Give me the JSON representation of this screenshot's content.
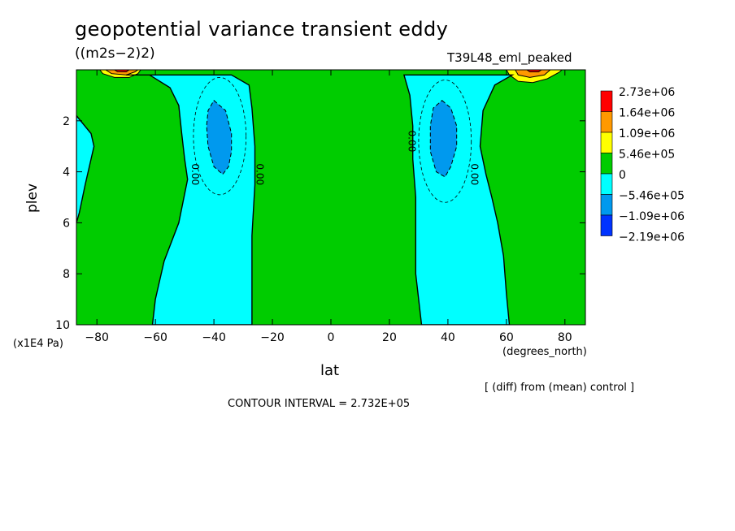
{
  "chart_data": {
    "type": "contour",
    "title": "geopotential variance transient eddy",
    "units": "((m2s−2)2)",
    "run_label": "T39L48_eml_peaked",
    "xlabel": "lat",
    "x_units": "(degrees_north)",
    "ylabel": "plev",
    "y_units": "(x1E4 Pa)",
    "xlim": [
      -87,
      87
    ],
    "ylim": [
      10,
      0
    ],
    "x_ticks": [
      -80,
      -60,
      -40,
      -20,
      0,
      20,
      40,
      60,
      80
    ],
    "y_ticks": [
      2,
      4,
      6,
      8,
      10
    ],
    "diff_note": "[ (diff) from (mean) control ]",
    "contour_interval": "CONTOUR INTERVAL = 2.732E+05",
    "contour_labels": [
      "0.00",
      "0.00",
      "0.00",
      "0.00"
    ],
    "legend": [
      {
        "label": "2.73e+06",
        "color": "#ff0000"
      },
      {
        "label": "1.64e+06",
        "color": "#ff9900"
      },
      {
        "label": "1.09e+06",
        "color": "#ffff00"
      },
      {
        "label": "5.46e+05",
        "color": "#00cc00"
      },
      {
        "label": "0",
        "color": "#00ffff"
      },
      {
        "label": "−5.46e+05",
        "color": "#0099ee"
      },
      {
        "label": "−1.09e+06",
        "color": "#0033ff"
      },
      {
        "label": "−2.19e+06",
        "color": ""
      }
    ],
    "regions": [
      {
        "name": "nh-negative-band",
        "level": "negative",
        "color": "#00ffff",
        "poly": [
          [
            -70,
            0.2
          ],
          [
            -62,
            0.2
          ],
          [
            -55,
            0.7
          ],
          [
            -52,
            1.4
          ],
          [
            -51,
            2.5
          ],
          [
            -50,
            3.5
          ],
          [
            -49,
            4.3
          ],
          [
            -52,
            6.0
          ],
          [
            -57,
            7.5
          ],
          [
            -60,
            9.0
          ],
          [
            -61,
            10
          ],
          [
            -27,
            10
          ],
          [
            -27,
            8.5
          ],
          [
            -27,
            6.5
          ],
          [
            -26,
            4.5
          ],
          [
            -26,
            3.0
          ],
          [
            -27,
            1.5
          ],
          [
            -28,
            0.6
          ],
          [
            -34,
            0.2
          ]
        ]
      },
      {
        "name": "sh-negative-band",
        "level": "negative",
        "color": "#00ffff",
        "poly": [
          [
            25,
            0.2
          ],
          [
            27,
            1.0
          ],
          [
            28,
            2.2
          ],
          [
            28,
            3.5
          ],
          [
            29,
            5.0
          ],
          [
            29,
            6.5
          ],
          [
            29,
            8.0
          ],
          [
            30,
            9.0
          ],
          [
            31,
            10
          ],
          [
            61,
            10
          ],
          [
            60,
            8.8
          ],
          [
            59,
            7.3
          ],
          [
            57,
            6.0
          ],
          [
            55,
            5.0
          ],
          [
            53,
            4.1
          ],
          [
            51,
            3.0
          ],
          [
            52,
            1.6
          ],
          [
            56,
            0.6
          ],
          [
            62,
            0.2
          ]
        ]
      },
      {
        "name": "west-edge-negative",
        "level": "negative",
        "color": "#00ffff",
        "poly": [
          [
            -87,
            1.8
          ],
          [
            -82,
            2.5
          ],
          [
            -81,
            3.0
          ],
          [
            -82,
            3.5
          ],
          [
            -84,
            4.5
          ],
          [
            -86,
            5.6
          ],
          [
            -87,
            6.0
          ]
        ]
      },
      {
        "name": "nh-deep-minimum",
        "level": "strong-negative",
        "color": "#0099ee",
        "poly": [
          [
            -40,
            1.2
          ],
          [
            -36,
            1.6
          ],
          [
            -34,
            2.5
          ],
          [
            -34,
            3.2
          ],
          [
            -35,
            3.8
          ],
          [
            -37,
            4.1
          ],
          [
            -40,
            3.8
          ],
          [
            -42,
            3.0
          ],
          [
            -42.5,
            2.2
          ],
          [
            -42,
            1.6
          ]
        ]
      },
      {
        "name": "sh-deep-minimum",
        "level": "strong-negative",
        "color": "#0099ee",
        "poly": [
          [
            38,
            1.2
          ],
          [
            41,
            1.5
          ],
          [
            43,
            2.2
          ],
          [
            43,
            3.0
          ],
          [
            41,
            3.8
          ],
          [
            39,
            4.2
          ],
          [
            36,
            4.0
          ],
          [
            34,
            3.2
          ],
          [
            34,
            2.2
          ],
          [
            35,
            1.5
          ]
        ]
      },
      {
        "name": "nh-surface-max-outer",
        "level": "positive",
        "color": "#ffff00",
        "poly": [
          [
            -79,
            0
          ],
          [
            -78,
            0.15
          ],
          [
            -74,
            0.3
          ],
          [
            -69,
            0.3
          ],
          [
            -66,
            0.15
          ],
          [
            -65,
            0
          ]
        ]
      },
      {
        "name": "nh-surface-max-mid",
        "level": "positive",
        "color": "#ff9900",
        "poly": [
          [
            -77,
            0
          ],
          [
            -75,
            0.15
          ],
          [
            -70,
            0.2
          ],
          [
            -67,
            0.08
          ],
          [
            -66,
            0
          ]
        ]
      },
      {
        "name": "nh-surface-max-core",
        "level": "positive",
        "color": "#ff0000",
        "poly": [
          [
            -74,
            0
          ],
          [
            -73,
            0.07
          ],
          [
            -70,
            0.08
          ],
          [
            -69,
            0
          ]
        ]
      },
      {
        "name": "sh-surface-max-outer",
        "level": "positive",
        "color": "#ffff00",
        "poly": [
          [
            60,
            0
          ],
          [
            61,
            0.2
          ],
          [
            64,
            0.45
          ],
          [
            69,
            0.5
          ],
          [
            74,
            0.35
          ],
          [
            78,
            0.1
          ],
          [
            79,
            0
          ]
        ]
      },
      {
        "name": "sh-surface-max-mid",
        "level": "positive",
        "color": "#ff9900",
        "poly": [
          [
            63,
            0
          ],
          [
            64,
            0.2
          ],
          [
            68,
            0.3
          ],
          [
            73,
            0.2
          ],
          [
            75,
            0
          ]
        ]
      },
      {
        "name": "sh-surface-max-core",
        "level": "positive",
        "color": "#ff0000",
        "poly": [
          [
            67,
            0
          ],
          [
            68,
            0.08
          ],
          [
            71,
            0.08
          ],
          [
            72,
            0
          ]
        ]
      }
    ]
  }
}
